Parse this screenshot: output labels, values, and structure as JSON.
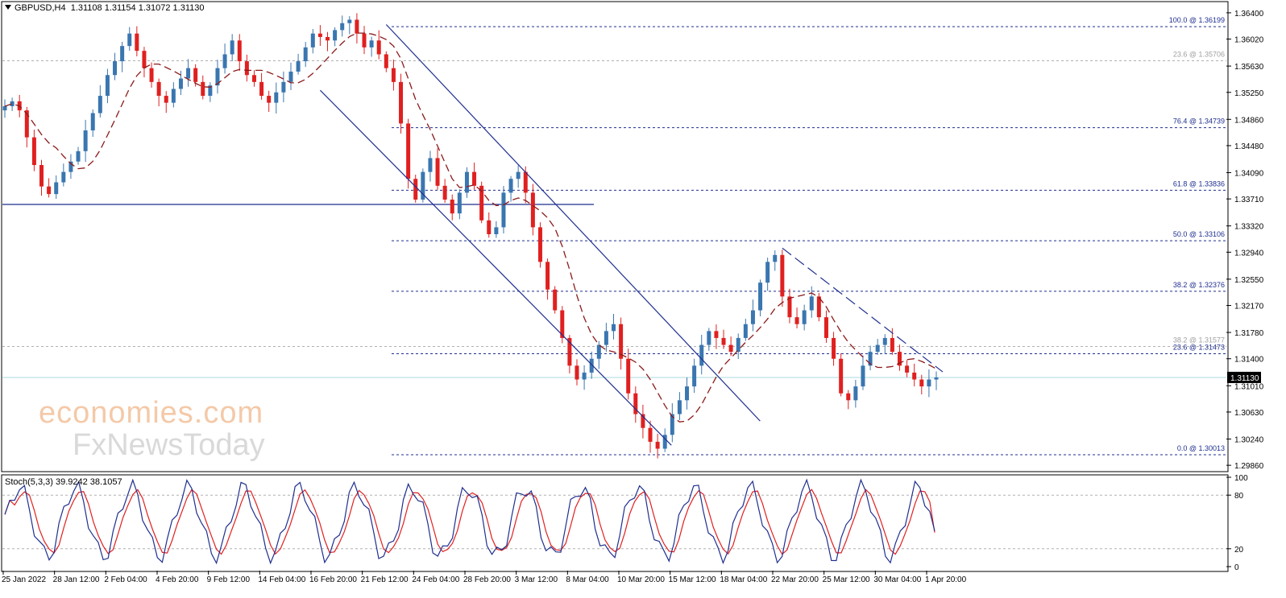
{
  "header": {
    "symbol": "GBPUSD,H4",
    "ohlc": "1.31108 1.31154 1.31072 1.31130"
  },
  "watermark": {
    "line1": "economies.com",
    "line2": "FxNewsToday"
  },
  "chart_data": {
    "type": "candlestick",
    "title": "GBPUSD,H4  1.31108 1.31154 1.31072 1.31130",
    "price_axis": {
      "ticks": [
        "1.36400",
        "1.36020",
        "1.35630",
        "1.35250",
        "1.34860",
        "1.34480",
        "1.34090",
        "1.33710",
        "1.33320",
        "1.32940",
        "1.32550",
        "1.32170",
        "1.31780",
        "1.31400",
        "1.31010",
        "1.30630",
        "1.30240",
        "1.29860"
      ],
      "range": [
        1.2978,
        1.3655
      ],
      "current_price": "1.31130"
    },
    "time_axis": {
      "labels": [
        "25 Jan 2022",
        "28 Jan 12:00",
        "2 Feb 04:00",
        "4 Feb 20:00",
        "9 Feb 12:00",
        "14 Feb 04:00",
        "16 Feb 20:00",
        "21 Feb 12:00",
        "24 Feb 04:00",
        "28 Feb 20:00",
        "3 Mar 12:00",
        "8 Mar 04:00",
        "10 Mar 20:00",
        "15 Mar 12:00",
        "18 Mar 04:00",
        "22 Mar 20:00",
        "25 Mar 12:00",
        "30 Mar 04:00",
        "1 Apr 20:00"
      ]
    },
    "fibonacci": [
      {
        "label": "100.0 @ 1.36199",
        "value": 1.36199
      },
      {
        "label": "76.4 @ 1.34739",
        "value": 1.34739
      },
      {
        "label": "61.8 @ 1.33836",
        "value": 1.33836
      },
      {
        "label": "50.0 @ 1.33106",
        "value": 1.33106
      },
      {
        "label": "38.2 @ 1.32376",
        "value": 1.32376
      },
      {
        "label": "23.6 @ 1.31473",
        "value": 1.31473
      },
      {
        "label": "0.0 @ 1.30013",
        "value": 1.30013
      }
    ],
    "fibonacci_grey": [
      {
        "label": "23.6 @ 1.35706",
        "value": 1.35706
      },
      {
        "label": "38.2 @ 1.31577",
        "value": 1.31577
      }
    ],
    "support_level": 1.3363,
    "close_series": [
      1.3505,
      1.3512,
      1.3499,
      1.346,
      1.342,
      1.3389,
      1.3378,
      1.3395,
      1.341,
      1.3425,
      1.344,
      1.347,
      1.3495,
      1.352,
      1.355,
      1.357,
      1.3592,
      1.361,
      1.3585,
      1.356,
      1.354,
      1.352,
      1.351,
      1.353,
      1.3545,
      1.356,
      1.354,
      1.352,
      1.3535,
      1.356,
      1.358,
      1.36,
      1.357,
      1.355,
      1.354,
      1.352,
      1.351,
      1.3525,
      1.354,
      1.3555,
      1.357,
      1.359,
      1.361,
      1.3605,
      1.36,
      1.3615,
      1.3625,
      1.363,
      1.361,
      1.359,
      1.36,
      1.358,
      1.356,
      1.354,
      1.348,
      1.34,
      1.337,
      1.341,
      1.343,
      1.339,
      1.337,
      1.335,
      1.338,
      1.341,
      1.339,
      1.334,
      1.332,
      1.333,
      1.338,
      1.34,
      1.341,
      1.338,
      1.333,
      1.328,
      1.324,
      1.321,
      1.317,
      1.313,
      1.311,
      1.312,
      1.314,
      1.316,
      1.318,
      1.319,
      1.314,
      1.309,
      1.306,
      1.304,
      1.302,
      1.301,
      1.303,
      1.306,
      1.308,
      1.31,
      1.313,
      1.316,
      1.318,
      1.317,
      1.316,
      1.315,
      1.317,
      1.319,
      1.321,
      1.325,
      1.328,
      1.329,
      1.323,
      1.32,
      1.319,
      1.321,
      1.323,
      1.32,
      1.317,
      1.314,
      1.309,
      1.308,
      1.31,
      1.313,
      1.315,
      1.316,
      1.317,
      1.315,
      1.313,
      1.312,
      1.311,
      1.31,
      1.311,
      1.3113
    ],
    "stochastic": {
      "title": "Stoch(5,3,3) 39.9242 38.1057",
      "main": 39.9242,
      "signal": 38.1057,
      "levels": [
        20,
        80
      ],
      "axis_ticks": [
        "100",
        "80",
        "20",
        "0"
      ]
    }
  }
}
